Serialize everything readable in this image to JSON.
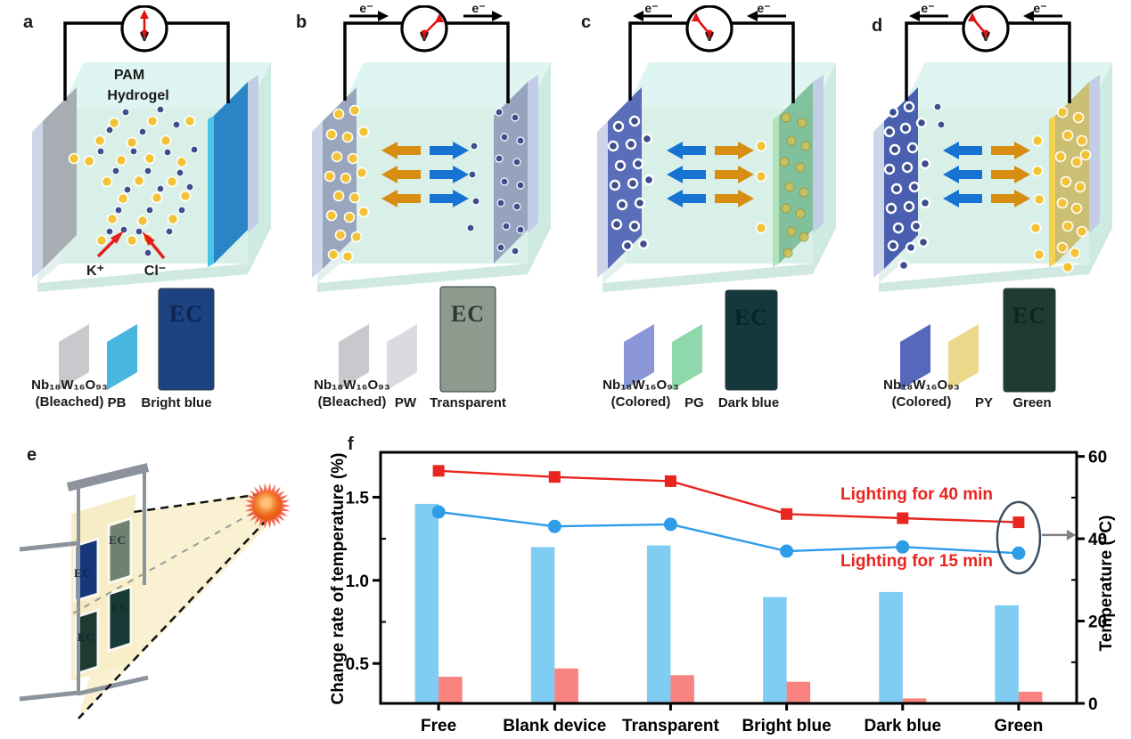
{
  "figure_panels": {
    "a": {
      "label": "a",
      "electrolyte_line1": "PAM",
      "electrolyte_line2": "Hydrogel",
      "cation": "K⁺",
      "anion": "Cl⁻",
      "voltmeter": "V",
      "films": {
        "formula": "Nb₁₈W₁₆O₉₃",
        "state": "(Bleached)",
        "counter_film": "PB",
        "photo_label": "EC",
        "photo_caption": "Bright blue",
        "colors": [
          "#c9c9cd",
          "#49b6e0",
          "#1d4280"
        ]
      }
    },
    "b": {
      "label": "b",
      "electron": "e⁻",
      "voltmeter": "V",
      "films": {
        "formula": "Nb₁₈W₁₆O₉₃",
        "state": "(Bleached)",
        "counter_film": "PW",
        "photo_label": "EC",
        "photo_caption": "Transparent",
        "colors": [
          "#c9c9cd",
          "#dadbe0",
          "#8c9b8d"
        ]
      }
    },
    "c": {
      "label": "c",
      "electron": "e⁻",
      "voltmeter": "V",
      "films": {
        "formula": "Nb₁₈W₁₆O₉₃",
        "state": "(Colored)",
        "counter_film": "PG",
        "photo_label": "EC",
        "photo_caption": "Dark blue",
        "colors": [
          "#8b97d6",
          "#8fd8ac",
          "#14383c"
        ]
      }
    },
    "d": {
      "label": "d",
      "electron": "e⁻",
      "voltmeter": "V",
      "films": {
        "formula": "Nb₁₈W₁₆O₉₃",
        "state": "(Colored)",
        "counter_film": "PY",
        "photo_label": "EC",
        "photo_caption": "Green",
        "colors": [
          "#5568bc",
          "#ecd88a",
          "#1e3c31"
        ]
      }
    },
    "e": {
      "label": "e",
      "window_labels": [
        "EC",
        "EC",
        "EC",
        "EC"
      ]
    },
    "f": {
      "label": "f"
    }
  },
  "chart_data": {
    "type": "bar",
    "subtype": "grouped bars with two overlay lines on secondary axis",
    "categories": [
      "Free",
      "Blank device",
      "Transparent",
      "Bright blue",
      "Dark blue",
      "Green"
    ],
    "bar_series": [
      {
        "name": "change-rate-blue-bar",
        "color": "#7fcdf3",
        "axis": "left",
        "values": [
          1.46,
          1.2,
          1.21,
          0.9,
          0.93,
          0.85
        ]
      },
      {
        "name": "change-rate-red-bar",
        "color": "#f9837e",
        "axis": "left",
        "values": [
          0.42,
          0.47,
          0.43,
          0.39,
          0.29,
          0.33
        ]
      }
    ],
    "line_series": [
      {
        "name": "Lighting for 40 min",
        "color": "#e8251f",
        "marker": "square",
        "axis": "right",
        "values": [
          56.5,
          55,
          54,
          46,
          45,
          44
        ]
      },
      {
        "name": "Lighting for 15 min",
        "color": "#2d9de8",
        "marker": "circle",
        "axis": "right",
        "values": [
          46.5,
          43,
          43.5,
          37,
          38,
          36.5
        ]
      }
    ],
    "ylabel_left": "Change rate of temperature (%)",
    "yticks_left": [
      "0.5",
      "1.0",
      "1.5"
    ],
    "ylim_left": [
      0.26,
      1.77
    ],
    "ylabel_right": "Temperature (°C)",
    "yticks_right": [
      "0",
      "20",
      "40",
      "60"
    ],
    "ylim_right": [
      0,
      61
    ],
    "annotations": [
      {
        "text": "Lighting for 40 min",
        "color": "#e8251f"
      },
      {
        "text": "Lighting for 15 min",
        "color": "#e8251f"
      }
    ],
    "legend_position": "none",
    "grid": false
  }
}
